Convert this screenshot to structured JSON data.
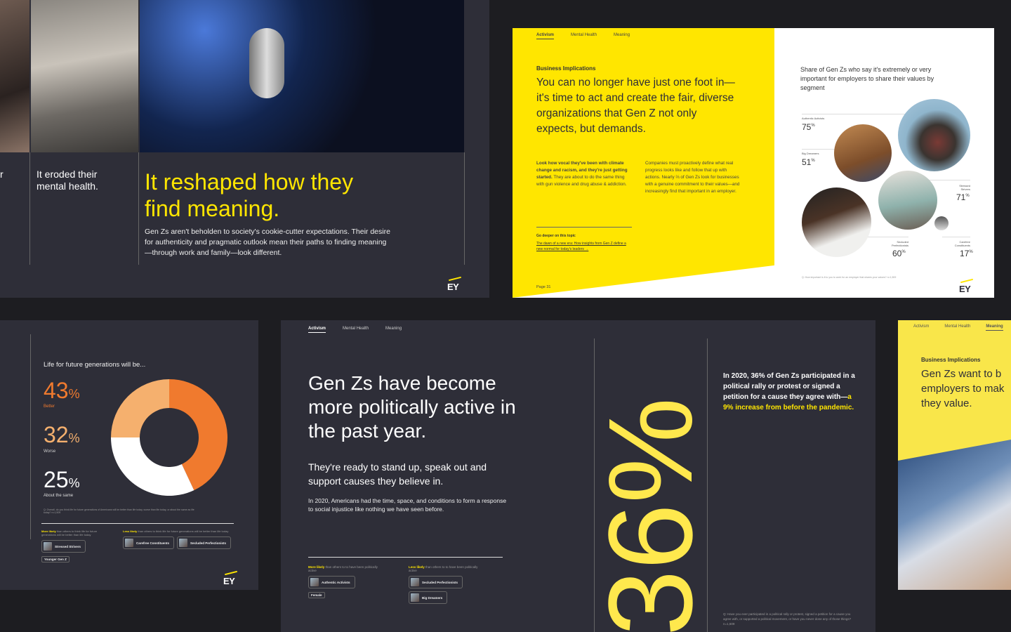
{
  "panel1": {
    "caption_left": "r",
    "caption_mid": "It eroded their mental health.",
    "headline": "It reshaped how they find meaning.",
    "body": "Gen Zs aren't beholden to society's cookie-cutter expectations. Their desire for authenticity and pragmatic outlook mean their paths to finding meaning—through work and family—look different.",
    "logo": "EY"
  },
  "panel2": {
    "nav": [
      "Activism",
      "Mental Health",
      "Meaning"
    ],
    "eyebrow": "Business Implications",
    "headline": "You can no longer have just one foot in—it's time to act and create the fair, diverse organizations that Gen Z not only expects, but demands.",
    "col1_bold": "Look how vocal they've been with climate change and racism, and they're just getting started.",
    "col1_rest": " They are about to do the same thing with gun violence and drug abuse & addiction.",
    "col2": "Companies must proactively define what real progress looks like and follow that up with actions. Nearly ⅔ of Gen Zs look for businesses with a genuine commitment to their values—and increasingly find that important in an employer.",
    "deeper_label": "Go deeper on this topic",
    "deeper_link": "The dawn of a new era: How insights from Gen Z define a new normal for today's leaders →",
    "page": "Page 31",
    "chart_title": "Share of Gen Zs who say it's extremely or very important for employers to share their values by segment",
    "segments": [
      {
        "name": "Authentic Activists",
        "value": "75"
      },
      {
        "name": "Big Dreamers",
        "value": "51"
      },
      {
        "name": "Stressed Strivers",
        "value": "71"
      },
      {
        "name": "Secluded Perfectionists",
        "value": "60"
      },
      {
        "name": "Carefree Constituents",
        "value": "17"
      }
    ],
    "pct": "%",
    "footnote": "Q: How important is it to you to work for an employer that shares your values? n=1,509",
    "logo": "EY"
  },
  "panel3": {
    "title": "Life for future generations will be...",
    "stats": [
      {
        "value": "43",
        "label": "Better"
      },
      {
        "value": "32",
        "label": "Worse"
      },
      {
        "value": "25",
        "label": "About the same"
      }
    ],
    "pct": "%",
    "footnote": "Q: Overall, do you think life for future generations of Americans will be better than life today, worse than life today, or about the same as life today? n=1,509",
    "more_likely": "More likely",
    "more_text": " than others to think life for future generations will be better than life today",
    "less_likely": "Less likely",
    "less_text": " than others to think life for future generations will be better than life today",
    "more_chips": [
      "Stressed Strivers"
    ],
    "more_tag": "Younger Gen Z",
    "less_chips": [
      "Carefree Constituents",
      "Secluded Perfectionists"
    ],
    "logo": "EY",
    "colors": {
      "better": "#f07a2e",
      "worse": "#ffffff",
      "same": "#f5b06e"
    }
  },
  "chart_data": {
    "type": "pie",
    "title": "Life for future generations will be...",
    "categories": [
      "Better",
      "Worse",
      "About the same"
    ],
    "values": [
      43,
      32,
      25
    ],
    "donut": true
  },
  "panel4": {
    "nav": [
      "Activism",
      "Mental Health",
      "Meaning"
    ],
    "headline": "Gen Zs have become more politically active in the past year.",
    "sub": "They're ready to stand up, speak out and support causes they believe in.",
    "body": "In 2020, Americans had the time, space, and conditions to form a response to social injustice like nothing we have seen before.",
    "more_likely": "More likely",
    "more_text": " than others to to have been politically active",
    "less_likely": "Less likely",
    "less_text": " than others to to have been politically active",
    "more_chips": [
      "Authentic Activists"
    ],
    "more_tag": "Female",
    "less_chips": [
      "Secluded Perfectionists",
      "Big Dreamers"
    ],
    "big_number": "36%",
    "stat_text": "In 2020, 36% of Gen Zs participated in a political rally or protest or signed a petition for a cause they agree with—",
    "stat_highlight": "a 9% increase from before the pandemic.",
    "footnote": "Q: Have you ever participated in a political rally or protest, signed a petition for a cause you agree with, or supported a political movement, or have you never done any of those things? n=1,509"
  },
  "panel5": {
    "nav": [
      "Activism",
      "Mental Health",
      "Meaning"
    ],
    "eyebrow": "Business Implications",
    "headline": "Gen Zs want to b employers to mak they value."
  }
}
